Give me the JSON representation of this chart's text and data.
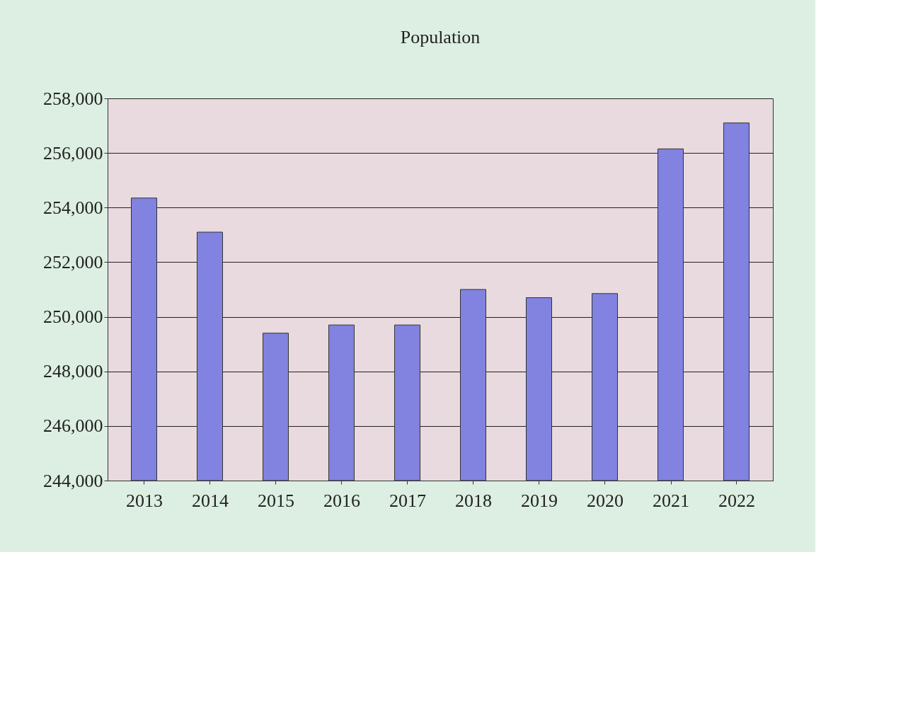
{
  "chart_data": {
    "type": "bar",
    "title": "Population",
    "categories": [
      "2013",
      "2014",
      "2015",
      "2016",
      "2017",
      "2018",
      "2019",
      "2020",
      "2021",
      "2022"
    ],
    "values": [
      254350,
      253100,
      249400,
      249700,
      249700,
      251000,
      250700,
      250850,
      256150,
      257100
    ],
    "color": "#8282e0",
    "ylim": [
      244000,
      258000
    ],
    "yticks": [
      {
        "value": 244000,
        "label": "244,000"
      },
      {
        "value": 246000,
        "label": "246,000"
      },
      {
        "value": 248000,
        "label": "248,000"
      },
      {
        "value": 250000,
        "label": "250,000"
      },
      {
        "value": 252000,
        "label": "252,000"
      },
      {
        "value": 254000,
        "label": "254,000"
      },
      {
        "value": 256000,
        "label": "256,000"
      },
      {
        "value": 258000,
        "label": "258,000"
      }
    ],
    "grid": "y"
  }
}
